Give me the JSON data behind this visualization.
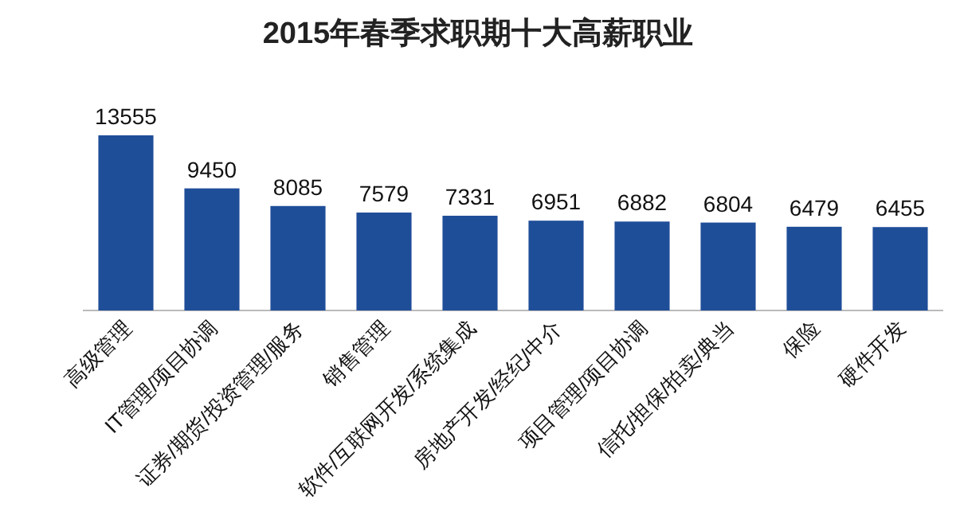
{
  "chart_data": {
    "type": "bar",
    "title": "2015年春季求职期十大高薪职业",
    "categories": [
      "高级管理",
      "IT管理/项目协调",
      "证券/期货/投资管理/服务",
      "销售管理",
      "软件/互联网开发/系统集成",
      "房地产开发/经纪/中介",
      "项目管理/项目协调",
      "信托/担保/拍卖/典当",
      "保险",
      "硬件开发"
    ],
    "values": [
      13555,
      9450,
      8085,
      7579,
      7331,
      6951,
      6882,
      6804,
      6479,
      6455
    ],
    "color": "#1f4e99",
    "data_labels": true
  }
}
